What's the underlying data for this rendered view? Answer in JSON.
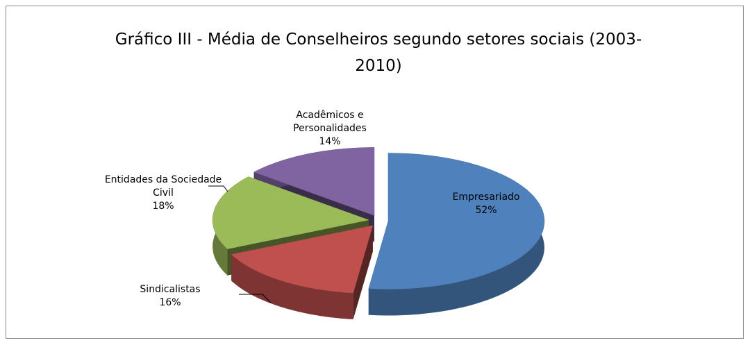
{
  "chart_data": {
    "type": "pie3d",
    "title": "Gráfico III - Média de Conselheiros segundo setores sociais (2003-2010)",
    "categories": [
      "Empresariado",
      "Sindicalistas",
      "Entidades da Sociedade Civil",
      "Acadêmicos e Personalidades"
    ],
    "values": [
      52,
      16,
      18,
      14
    ],
    "value_labels": [
      "52%",
      "16%",
      "18%",
      "14%"
    ],
    "colors": [
      "#4f81bd",
      "#c0504d",
      "#9bbb59",
      "#8064a2"
    ]
  }
}
